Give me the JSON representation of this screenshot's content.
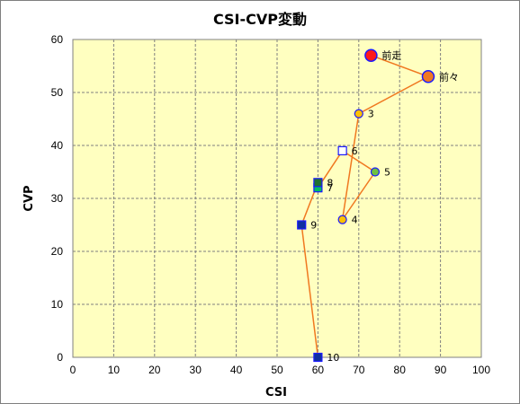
{
  "chart_data": {
    "type": "scatter",
    "title": "CSI-CVP変動",
    "xlabel": "CSI",
    "ylabel": "CVP",
    "xlim": [
      0,
      100
    ],
    "ylim": [
      0,
      60
    ],
    "xticks": [
      0,
      10,
      20,
      30,
      40,
      50,
      60,
      70,
      80,
      90,
      100
    ],
    "yticks": [
      0,
      10,
      20,
      30,
      40,
      50,
      60
    ],
    "grid": true,
    "plot_background": "#ffffc0",
    "line_color": "#f07820",
    "connect_order": [
      "前走",
      "前々",
      "3",
      "4",
      "5",
      "6",
      "7",
      "8",
      "9",
      "10"
    ],
    "points": [
      {
        "label": "前走",
        "x": 73,
        "y": 57,
        "marker": "circle-large",
        "fill": "#ff1a1a",
        "stroke": "#1a1aff"
      },
      {
        "label": "前々",
        "x": 87,
        "y": 53,
        "marker": "circle-large",
        "fill": "#f07820",
        "stroke": "#1a1aff"
      },
      {
        "label": "3",
        "x": 70,
        "y": 46,
        "marker": "circle",
        "fill": "#ffc000",
        "stroke": "#1a1aff"
      },
      {
        "label": "4",
        "x": 66,
        "y": 26,
        "marker": "circle",
        "fill": "#ffc000",
        "stroke": "#1a1aff"
      },
      {
        "label": "5",
        "x": 74,
        "y": 35,
        "marker": "circle",
        "fill": "#70c040",
        "stroke": "#1a1aff"
      },
      {
        "label": "6",
        "x": 66,
        "y": 39,
        "marker": "square",
        "fill": "#ffffff",
        "stroke": "#1a1aff"
      },
      {
        "label": "7",
        "x": 60,
        "y": 32,
        "marker": "square",
        "fill": "#00c060",
        "stroke": "#1a1aff"
      },
      {
        "label": "8",
        "x": 60,
        "y": 33,
        "marker": "square",
        "fill": "#207030",
        "stroke": "#1a1aff"
      },
      {
        "label": "9",
        "x": 56,
        "y": 25,
        "marker": "square",
        "fill": "#1030a0",
        "stroke": "#1a1aff"
      },
      {
        "label": "10",
        "x": 60,
        "y": 0,
        "marker": "square",
        "fill": "#1030a0",
        "stroke": "#1a1aff"
      }
    ]
  }
}
